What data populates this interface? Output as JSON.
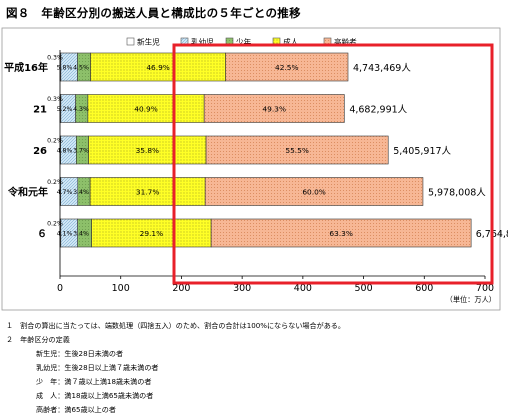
{
  "figure_title": "図８　年齢区分別の搬送人員と構成比の５年ごとの推移",
  "chart_data": {
    "type": "bar",
    "stacked": true,
    "orientation": "horizontal",
    "title": "",
    "unit_label": "（単位：万人）",
    "xlim": [
      0,
      700
    ],
    "xticks": [
      0,
      100,
      200,
      300,
      400,
      500,
      600,
      700
    ],
    "categories": [
      "平成16年",
      "21",
      "26",
      "令和元年",
      "６"
    ],
    "totals_man": [
      474.3469,
      468.2991,
      540.5917,
      597.8008,
      676.4838
    ],
    "total_labels": [
      "4,743,469人",
      "4,682,991人",
      "5,405,917人",
      "5,978,008人",
      "6,764,838人"
    ],
    "series": [
      {
        "name": "新生児",
        "color": "#ffffff",
        "pct": [
          "0.3%",
          "0.3%",
          "0.2%",
          "0.2%",
          "0.2%"
        ]
      },
      {
        "name": "乳幼児",
        "color": "#cfe6f5",
        "pct": [
          "5.8%",
          "5.2%",
          "4.8%",
          "4.7%",
          "4.1%"
        ]
      },
      {
        "name": "少年",
        "color": "#8dc06a",
        "pct": [
          "4.5%",
          "4.3%",
          "3.7%",
          "3.4%",
          "3.4%"
        ]
      },
      {
        "name": "成人",
        "color": "#ffff26",
        "pct": [
          "46.9%",
          "40.9%",
          "35.8%",
          "31.7%",
          "29.1%"
        ]
      },
      {
        "name": "高齢者",
        "color": "#f7b795",
        "pct": [
          "42.5%",
          "49.3%",
          "55.5%",
          "60.0%",
          "63.3%"
        ]
      }
    ],
    "highlight_box_color": "#e8202a"
  },
  "notes": [
    "１　割合の算出に当たっては、端数処理（四捨五入）のため、割合の合計は100%にならない場合がある。",
    "２　年齢区分の定義"
  ],
  "definitions": [
    "新生児：生後28日未満の者",
    "乳幼児：生後28日以上満７歳未満の者",
    "少　年：満７歳以上満18歳未満の者",
    "成　人：満18歳以上満65歳未満の者",
    "高齢者：満65歳以上の者"
  ]
}
